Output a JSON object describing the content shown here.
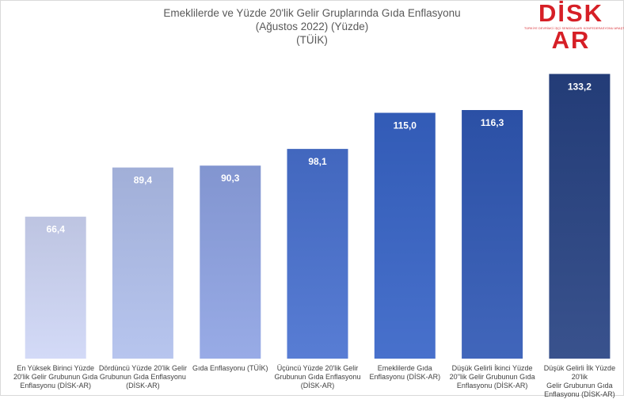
{
  "title_lines": [
    "Emeklilerde ve Yüzde 20'lik Gelir Gruplarında Gıda Enflasyonu",
    "(Ağustos 2022) (Yüzde)",
    "(TÜİK)"
  ],
  "logo": {
    "text": "DİSK AR",
    "subtext": "TÜRKİYE DEVRİMCİ İŞÇİ SENDİKALARI KONFEDERASYONU ARAŞTIRMA MERKEZİ"
  },
  "chart_data": {
    "type": "bar",
    "title": "Emeklilerde ve Yüzde 20'lik Gelir Gruplarında Gıda Enflasyonu (Ağustos 2022) (Yüzde) (TÜİK)",
    "categories": [
      "En Yüksek Birinci Yüzde 20'lik Gelir Grubunun Gıda Enflasyonu (DİSK-AR)",
      "Dördüncü Yüzde 20'lik Gelir Grubunun Gıda Enflasyonu (DİSK-AR)",
      "Gıda Enflasyonu (TÜİK)",
      "Üçüncü Yüzde 20'lik Gelir Grubunun Gıda Enflasyonu (DİSK-AR)",
      "Emeklilerde Gıda Enflasyonu (DİSK-AR)",
      "Düşük Gelirli İkinci Yüzde 20'lik Gelir Grubunun Gıda Enflasyonu (DİSK-AR)",
      "Düşük Gelirli İlk Yüzde 20'lik Gelir Grubunun Gıda Enflasyonu (DİSK-AR)"
    ],
    "label_lines": [
      [
        "En Yüksek Birinci Yüzde",
        "20'lik Gelir Grubunun Gıda",
        "Enflasyonu (DİSK-AR)"
      ],
      [
        "Dördüncü Yüzde 20'lik Gelir",
        "Grubunun Gıda Enflasyonu",
        "(DİSK-AR)"
      ],
      [
        "Gıda Enflasyonu (TÜİK)"
      ],
      [
        "Üçüncü Yüzde 20'lik Gelir",
        "Grubunun Gıda Enflasyonu",
        "(DİSK-AR)"
      ],
      [
        "Emeklilerde Gıda",
        "Enflasyonu (DİSK-AR)"
      ],
      [
        "Düşük Gelirli İkinci Yüzde",
        "20''lik Gelir Grubunun Gıda",
        "Enflasyonu (DİSK-AR)"
      ],
      [
        "Düşük Gelirli İlk Yüzde 20'lik",
        "Gelir Grubunun Gıda",
        "Enflasyonu (DİSK-AR)"
      ]
    ],
    "values": [
      66.4,
      89.4,
      90.3,
      98.1,
      115.0,
      116.3,
      133.2
    ],
    "value_labels": [
      "66,4",
      "89,4",
      "90,3",
      "98,1",
      "115,0",
      "116,3",
      "133,2"
    ],
    "ylim": [
      0,
      140
    ],
    "grid": false,
    "legend": "none",
    "colors": [
      "#c5cce9",
      "#a9b7e0",
      "#8a9dd8",
      "#4a6fc6",
      "#3a63be",
      "#3358ad",
      "#2b447f"
    ]
  }
}
